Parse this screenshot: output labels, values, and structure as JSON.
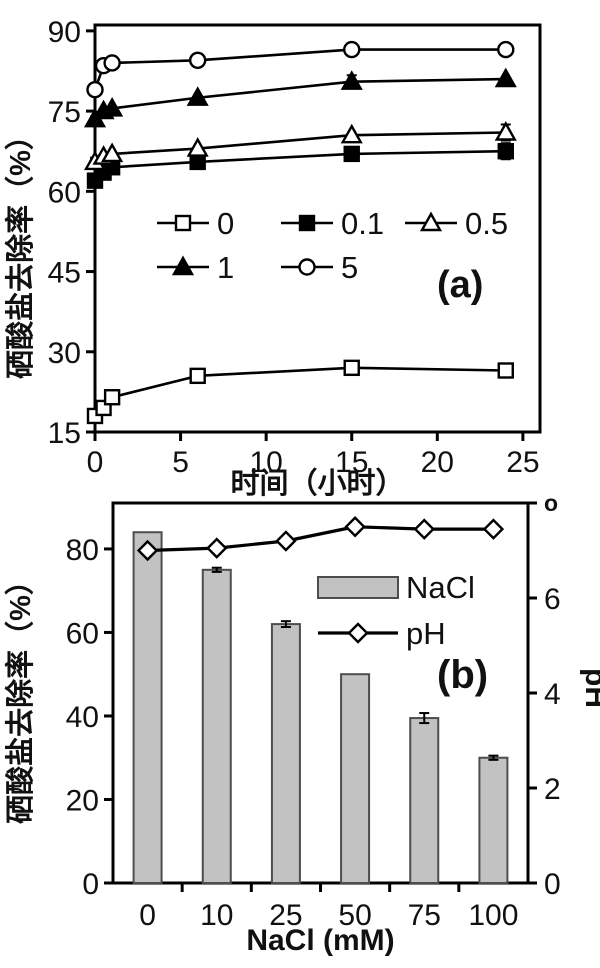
{
  "figure": {
    "background": "#ffffff",
    "text_color": "#111111",
    "line_color": "#000000"
  },
  "chart_data": [
    {
      "id": "a",
      "type": "line",
      "panel_label": "(a)",
      "xlabel": "时间（小时）",
      "ylabel": "硒酸盐去除率（%）",
      "xlim": [
        0,
        26
      ],
      "ylim": [
        15,
        91.1
      ],
      "xticks": [
        0,
        5,
        10,
        15,
        20,
        25
      ],
      "yticks": [
        15,
        30,
        45,
        60,
        75,
        90
      ],
      "x": [
        0,
        0.5,
        1,
        6,
        15,
        24
      ],
      "series": [
        {
          "name": "0",
          "marker": "square-open",
          "values": [
            18,
            19.5,
            21.5,
            25.5,
            27,
            26.5
          ],
          "err": [
            1,
            0.8,
            0.8,
            1,
            0.8,
            0.8
          ]
        },
        {
          "name": "0.1",
          "marker": "square-filled",
          "values": [
            62,
            63.5,
            64.5,
            65.5,
            67,
            67.5
          ],
          "err": [
            0.8,
            0,
            0,
            0,
            0,
            1.5
          ]
        },
        {
          "name": "0.5",
          "marker": "triangle-open",
          "values": [
            65.5,
            66.5,
            67,
            68,
            70.5,
            71
          ],
          "err": [
            0.8,
            0,
            0,
            0,
            0,
            1.5
          ]
        },
        {
          "name": "1",
          "marker": "triangle-filled",
          "values": [
            73.5,
            75,
            75.5,
            77.5,
            80.5,
            81
          ],
          "err": [
            0.5,
            0,
            0,
            0,
            1.2,
            0
          ]
        },
        {
          "name": "5",
          "marker": "circle-open",
          "values": [
            79,
            83.5,
            84,
            84.5,
            86.5,
            86.5
          ],
          "err": [
            0.5,
            0,
            0,
            0.8,
            1,
            0
          ]
        }
      ],
      "legend_rows": [
        [
          "0",
          "0.1",
          "0.5"
        ],
        [
          "1",
          "5"
        ]
      ]
    },
    {
      "id": "b",
      "type": "bar+line",
      "panel_label": "(b)",
      "xlabel": "NaCl (mM)",
      "ylabel_left": "硒酸盐去除率（%）",
      "ylabel_right": "pH",
      "categories": [
        "0",
        "10",
        "25",
        "50",
        "75",
        "100"
      ],
      "ylim_left": [
        0,
        91
      ],
      "ylim_right": [
        0,
        8
      ],
      "yticks_left": [
        0,
        20,
        40,
        60,
        80
      ],
      "yticks_right": [
        {
          "v": 0,
          "label": "0"
        },
        {
          "v": 2,
          "label": "2"
        },
        {
          "v": 4,
          "label": "4"
        },
        {
          "v": 6,
          "label": "6"
        },
        {
          "v": 8,
          "label": "o",
          "small": true
        }
      ],
      "bar_series": {
        "name": "NaCl",
        "fill": "#c2c2c2",
        "border": "#4d4d4d",
        "values": [
          84,
          75,
          62,
          50,
          39.5,
          30
        ],
        "err": [
          0,
          0.5,
          0.7,
          0,
          1.2,
          0.5
        ]
      },
      "line_series": {
        "name": "pH",
        "marker": "diamond-open",
        "values": [
          7.0,
          7.05,
          7.2,
          7.5,
          7.45,
          7.45
        ]
      }
    }
  ]
}
